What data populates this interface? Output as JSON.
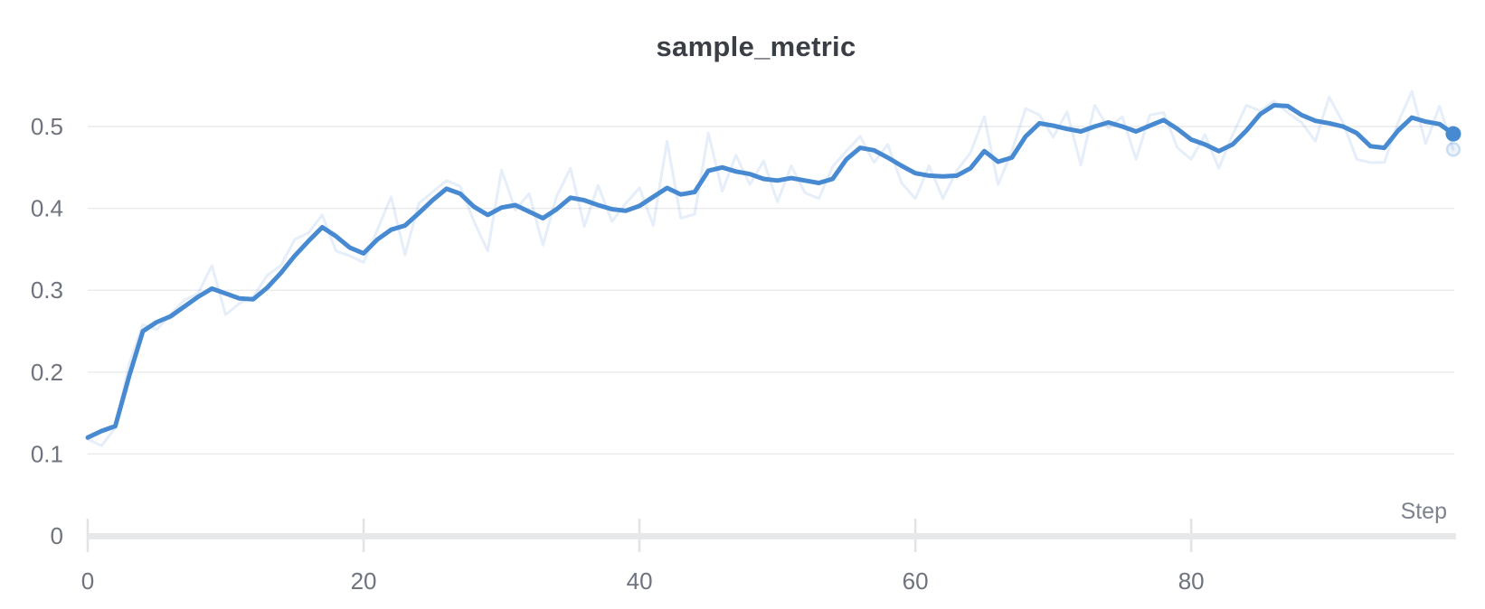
{
  "chart_data": {
    "type": "line",
    "title": "sample_metric",
    "xlabel": "Step",
    "ylabel": "",
    "x_ticks": [
      0,
      20,
      40,
      60,
      80
    ],
    "y_ticks": [
      0,
      0.1,
      0.2,
      0.3,
      0.4,
      0.5
    ],
    "xlim": [
      0,
      99.2
    ],
    "ylim": [
      0,
      0.553
    ],
    "grid": "horizontal-only",
    "legend": "none",
    "n_points": 100,
    "x_range": [
      0,
      99
    ],
    "series": [
      {
        "name": "sample_metric (smoothed)",
        "style": "bold",
        "values": [
          0.12,
          0.128,
          0.134,
          0.195,
          0.25,
          0.261,
          0.268,
          0.28,
          0.292,
          0.302,
          0.296,
          0.29,
          0.289,
          0.303,
          0.321,
          0.342,
          0.36,
          0.377,
          0.366,
          0.352,
          0.345,
          0.362,
          0.374,
          0.379,
          0.394,
          0.41,
          0.424,
          0.418,
          0.402,
          0.392,
          0.401,
          0.404,
          0.396,
          0.388,
          0.399,
          0.413,
          0.41,
          0.404,
          0.399,
          0.397,
          0.403,
          0.414,
          0.425,
          0.417,
          0.42,
          0.446,
          0.45,
          0.445,
          0.442,
          0.436,
          0.434,
          0.437,
          0.434,
          0.431,
          0.436,
          0.46,
          0.474,
          0.471,
          0.462,
          0.452,
          0.443,
          0.44,
          0.439,
          0.44,
          0.449,
          0.47,
          0.457,
          0.462,
          0.488,
          0.504,
          0.501,
          0.497,
          0.494,
          0.5,
          0.505,
          0.5,
          0.494,
          0.501,
          0.508,
          0.497,
          0.484,
          0.478,
          0.47,
          0.478,
          0.495,
          0.515,
          0.526,
          0.525,
          0.514,
          0.507,
          0.504,
          0.5,
          0.492,
          0.476,
          0.474,
          0.495,
          0.511,
          0.506,
          0.503,
          0.491
        ]
      },
      {
        "name": "sample_metric (raw)",
        "style": "faint",
        "values": [
          0.118,
          0.11,
          0.132,
          0.21,
          0.258,
          0.252,
          0.27,
          0.288,
          0.296,
          0.33,
          0.27,
          0.284,
          0.292,
          0.318,
          0.33,
          0.362,
          0.37,
          0.392,
          0.348,
          0.342,
          0.334,
          0.374,
          0.414,
          0.343,
          0.406,
          0.42,
          0.434,
          0.427,
          0.384,
          0.348,
          0.447,
          0.398,
          0.418,
          0.355,
          0.415,
          0.449,
          0.378,
          0.428,
          0.384,
          0.406,
          0.425,
          0.379,
          0.482,
          0.388,
          0.393,
          0.492,
          0.421,
          0.465,
          0.429,
          0.458,
          0.408,
          0.452,
          0.419,
          0.412,
          0.451,
          0.47,
          0.488,
          0.456,
          0.478,
          0.431,
          0.412,
          0.452,
          0.412,
          0.446,
          0.468,
          0.512,
          0.429,
          0.47,
          0.522,
          0.514,
          0.487,
          0.518,
          0.453,
          0.526,
          0.498,
          0.512,
          0.46,
          0.514,
          0.517,
          0.474,
          0.46,
          0.49,
          0.449,
          0.49,
          0.526,
          0.519,
          0.531,
          0.517,
          0.505,
          0.482,
          0.536,
          0.505,
          0.46,
          0.456,
          0.456,
          0.505,
          0.543,
          0.479,
          0.525,
          0.472
        ]
      }
    ],
    "end_marker": {
      "step": 99,
      "smoothed_value": 0.491,
      "raw_value": 0.472
    }
  },
  "colors": {
    "line_blue": "#478ad1",
    "raw_line_opacity": 0.14,
    "gridline": "#ebecee",
    "axis_bar": "#e7e8ea",
    "tick_mark": "#e2e3e6",
    "title_text": "#3a3e45",
    "tick_text": "#6e737d",
    "step_label_text": "#7d828e"
  }
}
